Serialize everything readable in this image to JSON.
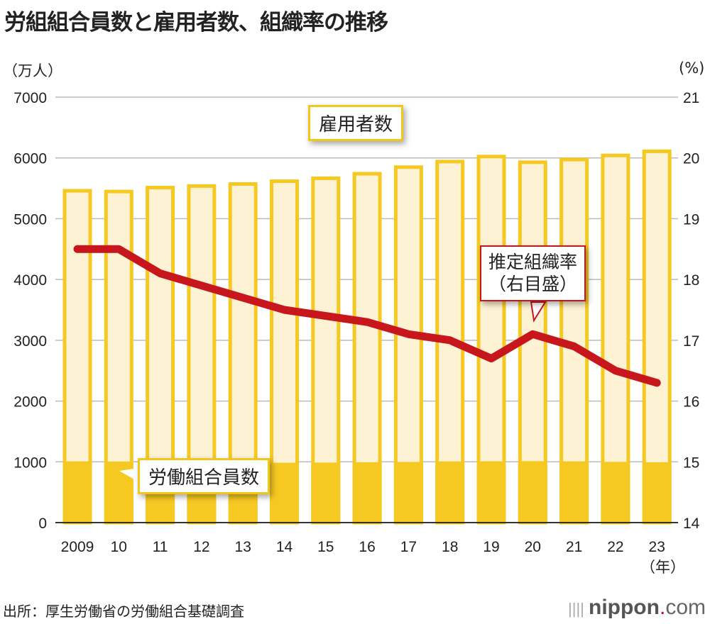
{
  "title": "労組組合員数と雇用者数、組織率の推移",
  "source": "出所：厚生労働省の労働組合基礎調査",
  "logo": {
    "brand": "nippon",
    "dot": ".",
    "suffix": "com"
  },
  "chart_data": {
    "type": "bar+line",
    "title": "労組組合員数と雇用者数、組織率の推移",
    "categories": [
      "2009",
      "10",
      "11",
      "12",
      "13",
      "14",
      "15",
      "16",
      "17",
      "18",
      "19",
      "20",
      "21",
      "22",
      "23"
    ],
    "xunit": "（年）",
    "left_axis": {
      "unit": "（万人）",
      "range": [
        0,
        7000
      ],
      "ticks": [
        "0",
        "1000",
        "2000",
        "3000",
        "4000",
        "5000",
        "6000",
        "7000"
      ]
    },
    "right_axis": {
      "unit": "(%)",
      "range": [
        14,
        21
      ],
      "ticks": [
        "14",
        "15",
        "16",
        "17",
        "18",
        "19",
        "20",
        "21"
      ]
    },
    "grid": true,
    "series": [
      {
        "name": "雇用者数",
        "type": "bar",
        "axis": "left",
        "color": "#f6c922",
        "fill": "#fdf2d4",
        "values": [
          5460,
          5447,
          5512,
          5537,
          5571,
          5617,
          5665,
          5740,
          5848,
          5940,
          6023,
          5929,
          5973,
          6041,
          6109
        ]
      },
      {
        "name": "労働組合員数",
        "type": "bar",
        "axis": "left",
        "color": "#f6c922",
        "values": [
          1008,
          1005,
          996,
          989,
          988,
          985,
          988,
          994,
          998,
          1007,
          1009,
          1011,
          1008,
          999,
          994
        ]
      },
      {
        "name": "推定組織率（右目盛）",
        "type": "line",
        "axis": "right",
        "color": "#c8161d",
        "values": [
          18.5,
          18.5,
          18.1,
          17.9,
          17.7,
          17.5,
          17.4,
          17.3,
          17.1,
          17.0,
          16.7,
          17.1,
          16.9,
          16.5,
          16.3
        ]
      }
    ],
    "labels": {
      "employees": "雇用者数",
      "members": "労働組合員数",
      "rate_line1": "推定組織率",
      "rate_line2": "（右目盛）"
    }
  }
}
